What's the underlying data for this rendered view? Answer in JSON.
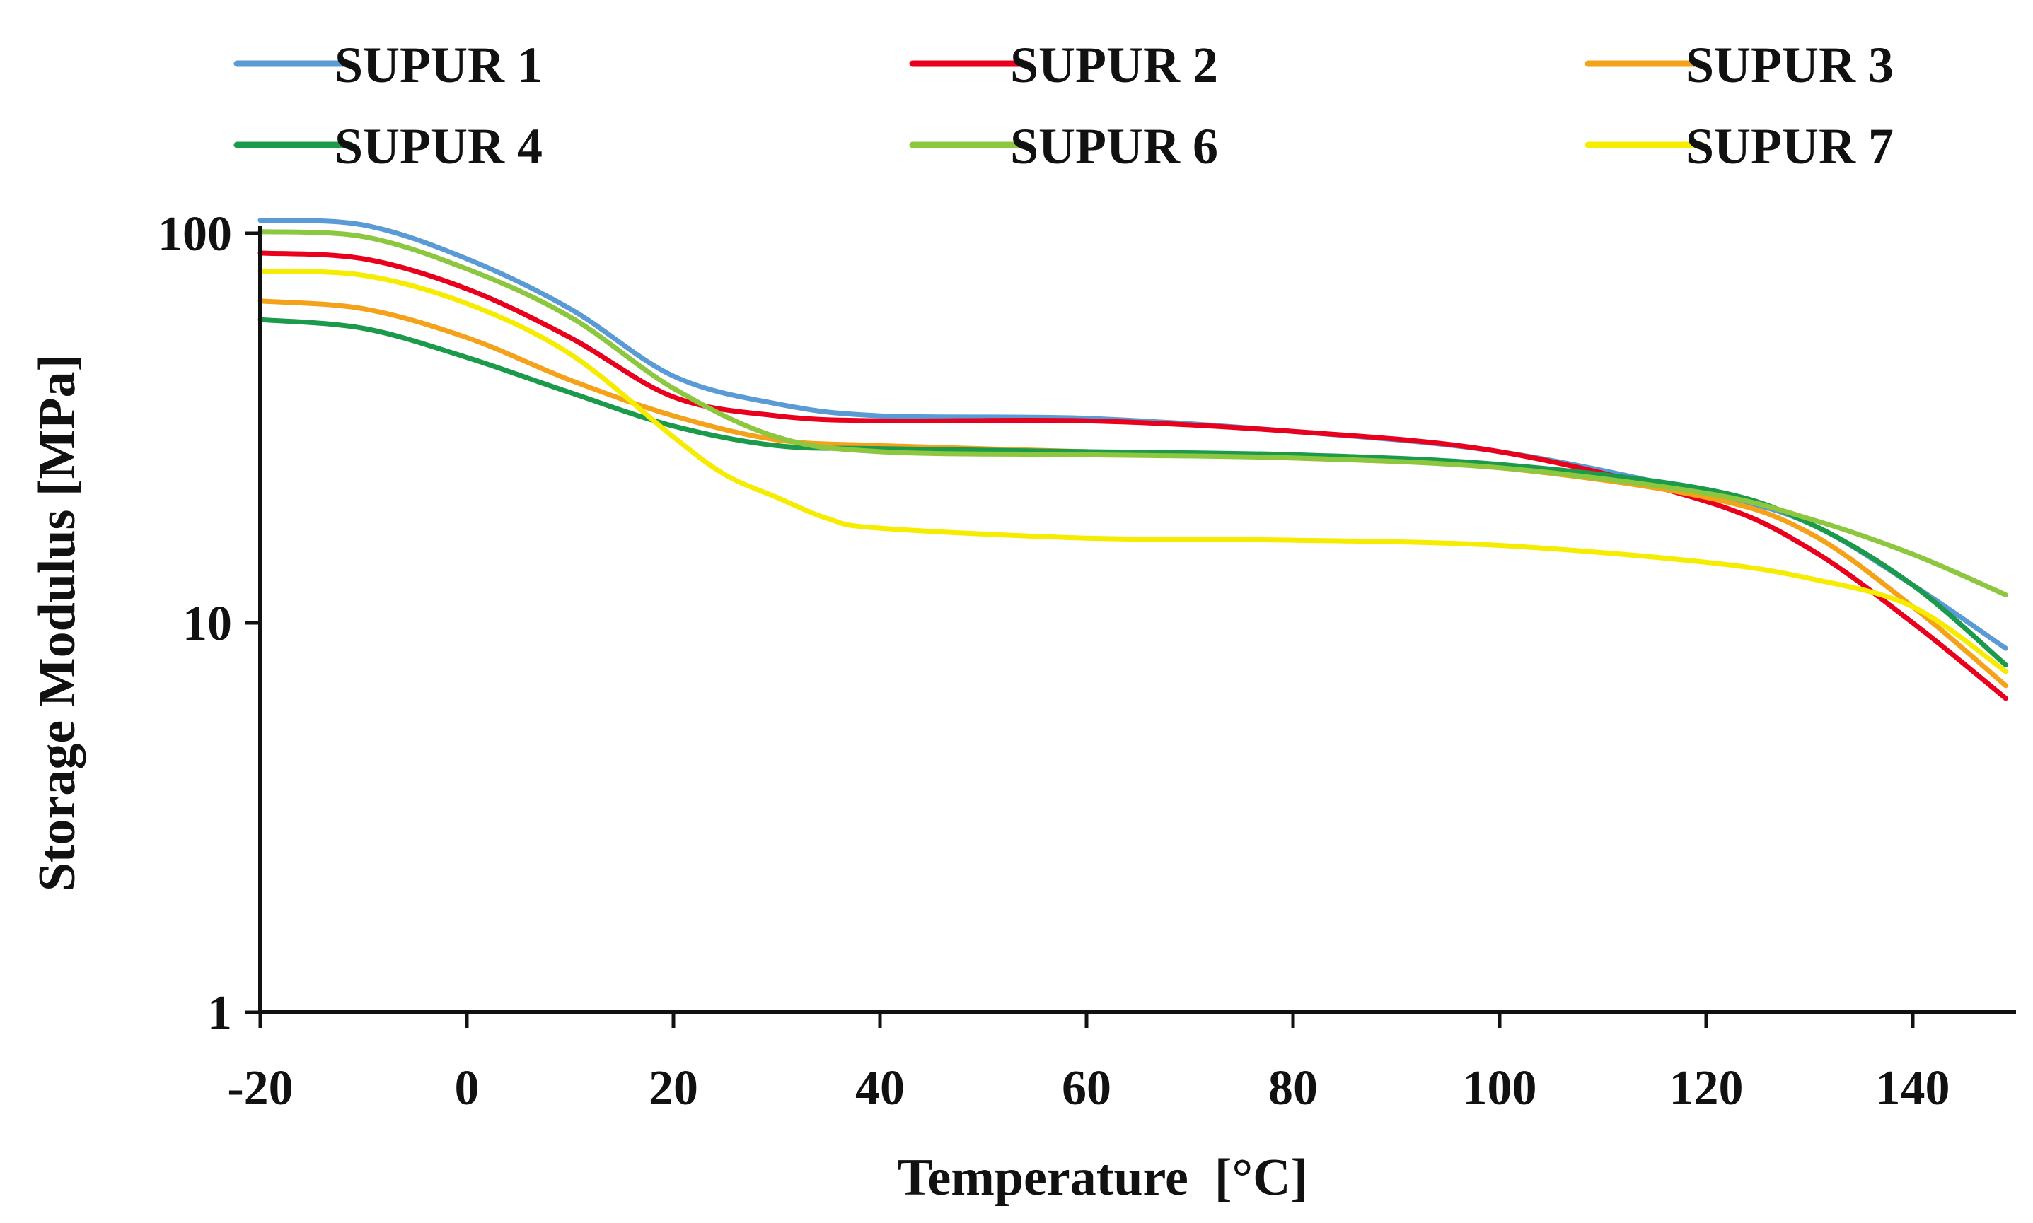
{
  "chart_data": {
    "type": "line",
    "title": "",
    "xlabel": "Temperature  [°C]",
    "ylabel": "Storage Modulus [MPa]",
    "xlim": [
      -20,
      150
    ],
    "ylim": [
      1,
      100
    ],
    "y_scale": "log",
    "x_ticks": [
      -20,
      0,
      20,
      40,
      60,
      80,
      100,
      120,
      140
    ],
    "x_tick_labels": [
      "-20",
      "0",
      "20",
      "40",
      "60",
      "80",
      "100",
      "120",
      "140"
    ],
    "y_ticks": [
      1,
      10,
      100
    ],
    "y_tick_labels": [
      "1",
      "10",
      "100"
    ],
    "grid": false,
    "legend_position": "top",
    "series": [
      {
        "name": "SUPUR 1",
        "color": "#5b9bd5",
        "points": [
          [
            -20,
            108
          ],
          [
            -10,
            105
          ],
          [
            0,
            86
          ],
          [
            10,
            64
          ],
          [
            20,
            43
          ],
          [
            30,
            36.5
          ],
          [
            40,
            34
          ],
          [
            60,
            33.5
          ],
          [
            80,
            31
          ],
          [
            100,
            27.5
          ],
          [
            120,
            21.5
          ],
          [
            130,
            18
          ],
          [
            140,
            12.5
          ],
          [
            149,
            8.6
          ]
        ]
      },
      {
        "name": "SUPUR 2",
        "color": "#e8001c",
        "points": [
          [
            -20,
            89
          ],
          [
            -10,
            86
          ],
          [
            0,
            72
          ],
          [
            10,
            54
          ],
          [
            20,
            38
          ],
          [
            30,
            34
          ],
          [
            40,
            33
          ],
          [
            60,
            33
          ],
          [
            80,
            31
          ],
          [
            100,
            27.5
          ],
          [
            120,
            20.5
          ],
          [
            130,
            15.5
          ],
          [
            140,
            10
          ],
          [
            149,
            6.4
          ]
        ]
      },
      {
        "name": "SUPUR 3",
        "color": "#f5a21b",
        "points": [
          [
            -20,
            67
          ],
          [
            -10,
            64
          ],
          [
            0,
            54
          ],
          [
            10,
            42
          ],
          [
            20,
            34
          ],
          [
            30,
            29.5
          ],
          [
            40,
            28.5
          ],
          [
            60,
            27.5
          ],
          [
            80,
            26.5
          ],
          [
            100,
            25
          ],
          [
            120,
            21
          ],
          [
            130,
            17
          ],
          [
            140,
            11
          ],
          [
            149,
            6.9
          ]
        ]
      },
      {
        "name": "SUPUR 4",
        "color": "#1a9a4a",
        "points": [
          [
            -20,
            60
          ],
          [
            -10,
            57
          ],
          [
            0,
            48
          ],
          [
            10,
            39
          ],
          [
            20,
            32
          ],
          [
            30,
            28.5
          ],
          [
            40,
            28
          ],
          [
            60,
            27.5
          ],
          [
            80,
            27
          ],
          [
            100,
            25.5
          ],
          [
            120,
            22
          ],
          [
            130,
            18
          ],
          [
            140,
            12.5
          ],
          [
            149,
            7.8
          ]
        ]
      },
      {
        "name": "SUPUR 6",
        "color": "#8dc63f",
        "points": [
          [
            -20,
            101
          ],
          [
            -10,
            98
          ],
          [
            0,
            81
          ],
          [
            10,
            61
          ],
          [
            20,
            40
          ],
          [
            30,
            30
          ],
          [
            40,
            27.5
          ],
          [
            60,
            27
          ],
          [
            80,
            26.5
          ],
          [
            100,
            25
          ],
          [
            120,
            21.5
          ],
          [
            130,
            18.5
          ],
          [
            140,
            15
          ],
          [
            149,
            11.8
          ]
        ]
      },
      {
        "name": "SUPUR 7",
        "color": "#f5ec00",
        "points": [
          [
            -20,
            80
          ],
          [
            -10,
            78
          ],
          [
            0,
            66
          ],
          [
            10,
            49
          ],
          [
            20,
            30
          ],
          [
            25,
            24
          ],
          [
            30,
            21
          ],
          [
            35,
            18.5
          ],
          [
            40,
            17.5
          ],
          [
            60,
            16.5
          ],
          [
            80,
            16.3
          ],
          [
            100,
            15.8
          ],
          [
            120,
            14.3
          ],
          [
            130,
            13
          ],
          [
            140,
            11
          ],
          [
            149,
            7.5
          ]
        ]
      }
    ]
  }
}
